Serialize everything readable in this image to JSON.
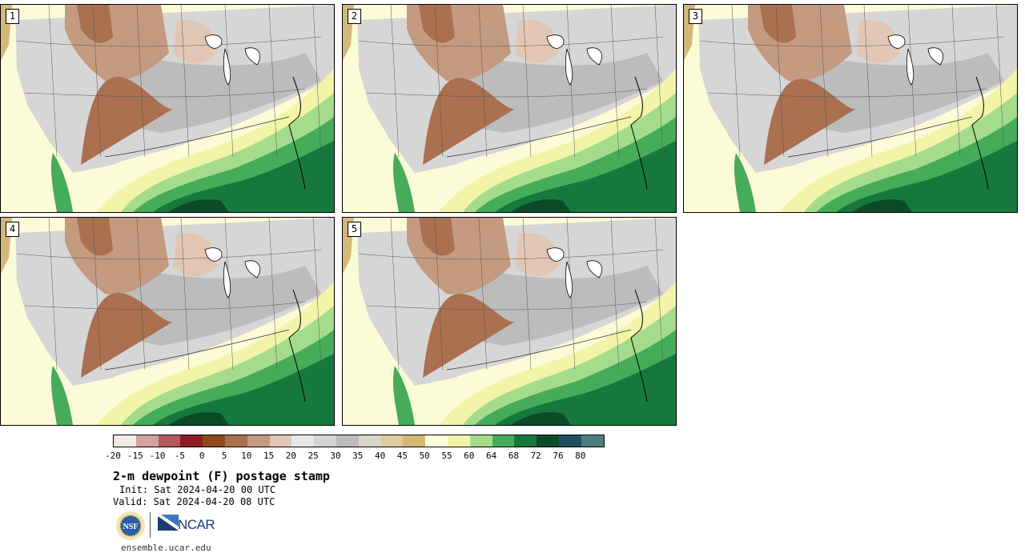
{
  "panels": [
    {
      "label": "1"
    },
    {
      "label": "2"
    },
    {
      "label": "3"
    },
    {
      "label": "4"
    },
    {
      "label": "5"
    }
  ],
  "colorbar": {
    "colors": [
      "#f4e8e8",
      "#d4a0a0",
      "#b45a5a",
      "#8c1c24",
      "#8c4a1a",
      "#aa7050",
      "#c49a80",
      "#e2c6b4",
      "#e8e8e8",
      "#d4d4d4",
      "#bcbcbc",
      "#dcd8c8",
      "#e0cc9c",
      "#d4b878",
      "#fbfbd8",
      "#f2f4a8",
      "#a4dc8c",
      "#46ac5a",
      "#16783c",
      "#0c4a28",
      "#1e5060",
      "#4c7c7e"
    ],
    "ticks": [
      "-20",
      "-15",
      "-10",
      "-5",
      "0",
      "5",
      "10",
      "15",
      "20",
      "25",
      "30",
      "35",
      "40",
      "45",
      "50",
      "55",
      "60",
      "64",
      "68",
      "72",
      "76",
      "80"
    ]
  },
  "title": "2-m dewpoint (F) postage stamp",
  "init": "Init: Sat 2024-04-20 00 UTC",
  "valid": "Valid: Sat 2024-04-20 08 UTC",
  "logos": {
    "nsf": "NSF",
    "ncar": "NCAR"
  },
  "site": "ensemble.ucar.edu"
}
